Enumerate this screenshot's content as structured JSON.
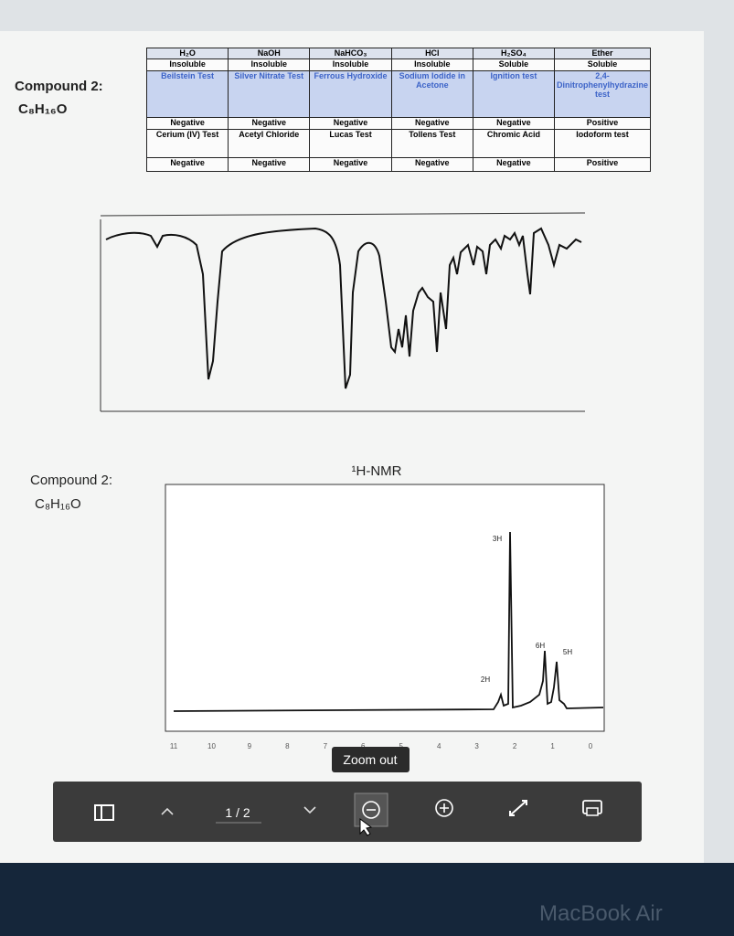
{
  "ir_section": {
    "compound_label": "Compound 2:",
    "formula": "C₈H₁₆O"
  },
  "table": {
    "rows": [
      [
        "H₂O",
        "NaOH",
        "NaHCO₃",
        "HCl",
        "H₂SO₄",
        "Ether"
      ],
      [
        "Insoluble",
        "Insoluble",
        "Insoluble",
        "Insoluble",
        "Soluble",
        "Soluble"
      ],
      [
        "Beilstein Test",
        "Silver Nitrate Test",
        "Ferrous Hydroxide",
        "Sodium Iodide in Acetone",
        "Ignition test",
        "2,4-Dinitrophenylhydrazine test"
      ],
      [
        "Negative",
        "Negative",
        "Negative",
        "Negative",
        "Negative",
        "Positive"
      ],
      [
        "Cerium (IV) Test",
        "Acetyl Chloride",
        "Lucas Test",
        "Tollens Test",
        "Chromic Acid",
        "Iodoform test"
      ],
      [
        "Negative",
        "Negative",
        "Negative",
        "Negative",
        "Negative",
        "Positive"
      ]
    ]
  },
  "nmr_section": {
    "compound_label": "Compound 2:",
    "formula": "C₈H₁₆O",
    "title": "¹H-NMR",
    "peak_labels": [
      "3H",
      "6H",
      "5H",
      "2H"
    ],
    "axis_ticks": [
      "11",
      "10",
      "9",
      "8",
      "7",
      "6",
      "5",
      "4",
      "3",
      "2",
      "1",
      "0"
    ]
  },
  "toolbar": {
    "page_indicator": "1 / 2",
    "tooltip": "Zoom out"
  },
  "bezel": {
    "brand": "MacBook Air"
  }
}
